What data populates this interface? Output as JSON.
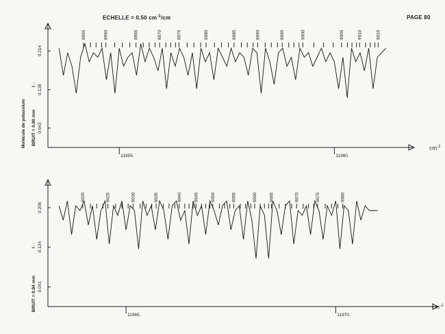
{
  "page": {
    "scale_label": "ECHELLE = 0.50 cm",
    "scale_exp": "-1",
    "scale_tail": "/cm",
    "page_label": "PAGE 80",
    "units": "cm",
    "units_exp": "-1"
  },
  "chart_data": [
    {
      "type": "line",
      "ylabel": "Molécule de potassium",
      "noise_label": "BRUIT = 0.90 mm",
      "y_marker": "I→",
      "ytick_labels": [
        "0.214",
        "0.128",
        "0.043"
      ],
      "yticks": [
        0.214,
        0.128,
        0.043
      ],
      "ylim": [
        0.0,
        0.26
      ],
      "xlim": [
        11953.5,
        11961.3
      ],
      "xtick_labels": [
        "11955.",
        "11960."
      ],
      "xticks": [
        11955.0,
        11960.0
      ],
      "line_numbers": [
        "8955",
        "8960",
        "8965",
        "8970",
        "8975",
        "8980",
        "8985",
        "8990",
        "8995",
        "9000",
        "9005",
        "9010",
        "9015"
      ],
      "line_number_x": [
        11954.2,
        11954.72,
        11955.42,
        11955.97,
        11956.42,
        11957.05,
        11957.7,
        11958.25,
        11958.82,
        11959.3,
        11960.2,
        11960.62,
        11961.05
      ],
      "series": [
        {
          "x": [
            11953.6,
            11953.7,
            11953.8,
            11953.9,
            11954.0,
            11954.1,
            11954.2,
            11954.3,
            11954.4,
            11954.5,
            11954.6,
            11954.7,
            11954.8,
            11954.9,
            11955.0,
            11955.1,
            11955.2,
            11955.3,
            11955.4,
            11955.5,
            11955.6,
            11955.7,
            11955.8,
            11955.9,
            11956.0,
            11956.1,
            11956.2,
            11956.3,
            11956.4,
            11956.5,
            11956.6,
            11956.7,
            11956.8,
            11956.9,
            11957.0,
            11957.1,
            11957.2,
            11957.3,
            11957.4,
            11957.5,
            11957.6,
            11957.7,
            11957.8,
            11957.9,
            11958.0,
            11958.1,
            11958.2,
            11958.3,
            11958.4,
            11958.5,
            11958.6,
            11958.7,
            11958.8,
            11958.9,
            11959.0,
            11959.1,
            11959.2,
            11959.3,
            11959.4,
            11959.5,
            11959.6,
            11959.7,
            11959.8,
            11959.9,
            11960.0,
            11960.1,
            11960.2,
            11960.3,
            11960.4,
            11960.5,
            11960.6,
            11960.7,
            11960.8,
            11960.9,
            11961.0,
            11961.1,
            11961.2
          ],
          "y": [
            0.22,
            0.16,
            0.21,
            0.18,
            0.12,
            0.2,
            0.23,
            0.19,
            0.21,
            0.2,
            0.22,
            0.15,
            0.21,
            0.12,
            0.22,
            0.18,
            0.2,
            0.21,
            0.16,
            0.23,
            0.19,
            0.22,
            0.2,
            0.17,
            0.22,
            0.13,
            0.21,
            0.18,
            0.22,
            0.2,
            0.16,
            0.21,
            0.13,
            0.22,
            0.19,
            0.21,
            0.15,
            0.22,
            0.2,
            0.18,
            0.22,
            0.19,
            0.21,
            0.2,
            0.16,
            0.22,
            0.21,
            0.12,
            0.22,
            0.19,
            0.14,
            0.21,
            0.22,
            0.18,
            0.2,
            0.15,
            0.22,
            0.2,
            0.21,
            0.18,
            0.2,
            0.22,
            0.19,
            0.21,
            0.19,
            0.13,
            0.2,
            0.11,
            0.22,
            0.19,
            0.21,
            0.17,
            0.22,
            0.13,
            0.2,
            0.21,
            0.22
          ]
        }
      ]
    },
    {
      "type": "line",
      "noise_label": "BRUIT = 0.94 mm",
      "y_marker": "I→",
      "ytick_labels": [
        "0.206",
        "0.124",
        "0.041"
      ],
      "yticks": [
        0.206,
        0.124,
        0.041
      ],
      "ylim": [
        0.0,
        0.25
      ],
      "xlim": [
        11963.3,
        11971.3
      ],
      "xtick_labels": [
        "11965.",
        "11970."
      ],
      "xticks": [
        11965.0,
        11970.0
      ],
      "line_numbers": [
        "9020",
        "9025",
        "9030",
        "9035",
        "9040",
        "9045",
        "9050",
        "9055",
        "9060",
        "9065",
        "9070",
        "9075",
        "9080"
      ],
      "line_number_x": [
        11964.0,
        11964.6,
        11965.2,
        11965.75,
        11966.3,
        11966.7,
        11967.1,
        11967.6,
        11968.1,
        11968.5,
        11969.1,
        11969.6,
        11970.2
      ],
      "series": [
        {
          "x": [
            11963.4,
            11963.5,
            11963.6,
            11963.7,
            11963.8,
            11963.9,
            11964.0,
            11964.1,
            11964.2,
            11964.3,
            11964.4,
            11964.5,
            11964.6,
            11964.7,
            11964.8,
            11964.9,
            11965.0,
            11965.1,
            11965.2,
            11965.3,
            11965.4,
            11965.5,
            11965.6,
            11965.7,
            11965.8,
            11965.9,
            11966.0,
            11966.1,
            11966.2,
            11966.3,
            11966.4,
            11966.5,
            11966.6,
            11966.7,
            11966.8,
            11966.9,
            11967.0,
            11967.1,
            11967.2,
            11967.3,
            11967.4,
            11967.5,
            11967.6,
            11967.7,
            11967.8,
            11967.9,
            11968.0,
            11968.1,
            11968.2,
            11968.3,
            11968.4,
            11968.5,
            11968.6,
            11968.7,
            11968.8,
            11968.9,
            11969.0,
            11969.1,
            11969.2,
            11969.3,
            11969.4,
            11969.5,
            11969.6,
            11969.7,
            11969.8,
            11969.9,
            11970.0,
            11970.1,
            11970.2,
            11970.3,
            11970.4,
            11970.5,
            11970.6,
            11970.7,
            11970.8,
            11970.9,
            11971.0
          ],
          "y": [
            0.21,
            0.18,
            0.22,
            0.15,
            0.21,
            0.2,
            0.22,
            0.17,
            0.21,
            0.14,
            0.2,
            0.22,
            0.13,
            0.21,
            0.19,
            0.22,
            0.16,
            0.21,
            0.2,
            0.12,
            0.22,
            0.19,
            0.21,
            0.16,
            0.22,
            0.2,
            0.14,
            0.21,
            0.22,
            0.18,
            0.2,
            0.13,
            0.22,
            0.19,
            0.21,
            0.15,
            0.22,
            0.2,
            0.17,
            0.21,
            0.22,
            0.16,
            0.2,
            0.21,
            0.14,
            0.22,
            0.18,
            0.1,
            0.21,
            0.19,
            0.1,
            0.22,
            0.2,
            0.15,
            0.21,
            0.22,
            0.13,
            0.2,
            0.19,
            0.21,
            0.15,
            0.22,
            0.2,
            0.14,
            0.21,
            0.19,
            0.22,
            0.12,
            0.21,
            0.2,
            0.13,
            0.22,
            0.18,
            0.21,
            0.2,
            0.2,
            0.2
          ]
        }
      ]
    }
  ]
}
